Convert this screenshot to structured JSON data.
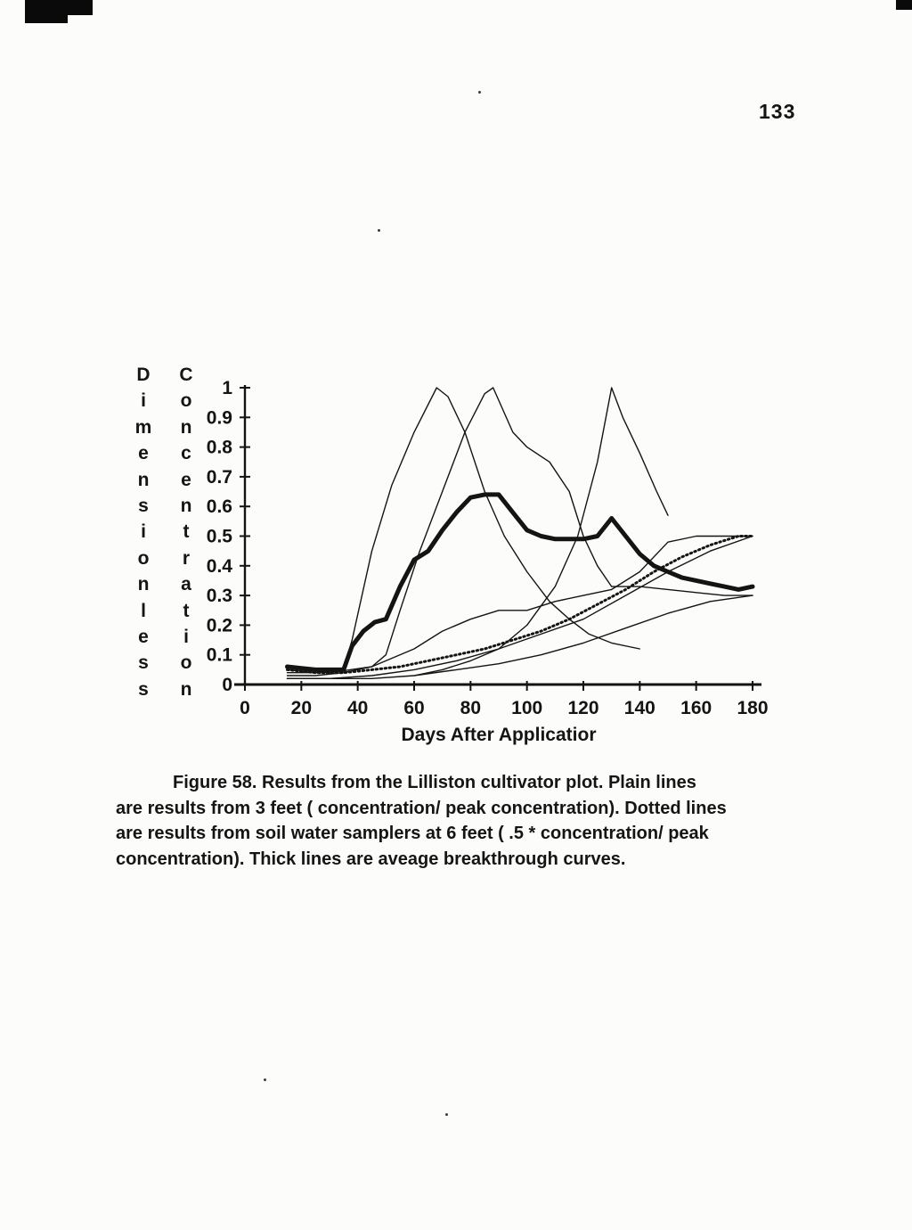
{
  "page": {
    "number": "133"
  },
  "caption": {
    "lines": [
      "Figure 58.  Results from the Lilliston cultivator plot.   Plain lines",
      "are results from 3 feet ( concentration/ peak concentration).  Dotted lines",
      "are results from soil water samplers at 6 feet ( .5 * concentration/ peak",
      "concentration).  Thick lines are aveage breakthrough curves."
    ]
  },
  "chart_data": {
    "type": "line",
    "title": "",
    "xlabel": "Days After Applicatior",
    "ylabel_words": [
      "Dimensionless",
      "Concentration"
    ],
    "xlim": [
      0,
      180
    ],
    "ylim": [
      0,
      1
    ],
    "xticks": [
      0,
      20,
      40,
      60,
      80,
      100,
      120,
      140,
      160,
      180
    ],
    "yticks": [
      0,
      0.1,
      0.2,
      0.3,
      0.4,
      0.5,
      0.6,
      0.7,
      0.8,
      0.9,
      1
    ],
    "ytick_labels": [
      "0",
      "0.1",
      "0.2",
      "0.3",
      "0.4",
      "0.5",
      "0.6",
      "0.7",
      "0.8",
      "0.9",
      "1"
    ],
    "grid": false,
    "legend": "none",
    "line_color": "#141414",
    "series": [
      {
        "name": "plain-peak-70",
        "style": "plain",
        "x": [
          15,
          25,
          35,
          38,
          45,
          52,
          60,
          68,
          72,
          78,
          85,
          92,
          100,
          108,
          115,
          122,
          130,
          140
        ],
        "y": [
          0.05,
          0.04,
          0.05,
          0.15,
          0.45,
          0.67,
          0.85,
          1.0,
          0.97,
          0.85,
          0.65,
          0.5,
          0.38,
          0.28,
          0.22,
          0.17,
          0.14,
          0.12
        ]
      },
      {
        "name": "plain-peak-88",
        "style": "plain",
        "x": [
          15,
          25,
          35,
          45,
          50,
          55,
          62,
          70,
          78,
          85,
          88,
          95,
          100,
          108,
          115,
          120,
          125,
          130,
          140,
          150,
          160,
          170,
          180
        ],
        "y": [
          0.03,
          0.03,
          0.04,
          0.06,
          0.1,
          0.25,
          0.45,
          0.65,
          0.85,
          0.98,
          1.0,
          0.85,
          0.8,
          0.75,
          0.65,
          0.5,
          0.4,
          0.33,
          0.33,
          0.32,
          0.31,
          0.3,
          0.3
        ]
      },
      {
        "name": "plain-peak-130",
        "style": "plain",
        "x": [
          60,
          70,
          80,
          90,
          100,
          110,
          118,
          125,
          130,
          134,
          140,
          146,
          150
        ],
        "y": [
          0.03,
          0.05,
          0.08,
          0.12,
          0.2,
          0.33,
          0.5,
          0.75,
          1.0,
          0.9,
          0.78,
          0.65,
          0.57
        ]
      },
      {
        "name": "plain-hump-rise",
        "style": "plain",
        "x": [
          15,
          30,
          45,
          60,
          70,
          80,
          90,
          100,
          110,
          120,
          130,
          140,
          150,
          160,
          170,
          180
        ],
        "y": [
          0.04,
          0.04,
          0.06,
          0.12,
          0.18,
          0.22,
          0.25,
          0.25,
          0.28,
          0.3,
          0.32,
          0.38,
          0.48,
          0.5,
          0.5,
          0.5
        ]
      },
      {
        "name": "plain-slow-rise-high",
        "style": "plain",
        "x": [
          15,
          30,
          45,
          60,
          75,
          90,
          105,
          120,
          135,
          150,
          165,
          180
        ],
        "y": [
          0.02,
          0.02,
          0.03,
          0.05,
          0.08,
          0.12,
          0.17,
          0.22,
          0.3,
          0.38,
          0.45,
          0.5
        ]
      },
      {
        "name": "plain-slow-rise-low",
        "style": "plain",
        "x": [
          15,
          30,
          45,
          60,
          75,
          90,
          105,
          120,
          135,
          150,
          165,
          180
        ],
        "y": [
          0.02,
          0.02,
          0.02,
          0.03,
          0.05,
          0.07,
          0.1,
          0.14,
          0.19,
          0.24,
          0.28,
          0.3
        ]
      },
      {
        "name": "dotted-6ft",
        "style": "dotted",
        "x": [
          15,
          25,
          35,
          45,
          55,
          65,
          75,
          85,
          95,
          105,
          115,
          125,
          135,
          145,
          155,
          165,
          175,
          180
        ],
        "y": [
          0.05,
          0.04,
          0.04,
          0.05,
          0.06,
          0.08,
          0.1,
          0.12,
          0.15,
          0.18,
          0.22,
          0.27,
          0.32,
          0.38,
          0.43,
          0.47,
          0.5,
          0.5
        ]
      },
      {
        "name": "average-breakthrough",
        "style": "thick",
        "x": [
          15,
          20,
          25,
          30,
          35,
          38,
          42,
          46,
          50,
          55,
          60,
          65,
          70,
          75,
          80,
          85,
          90,
          95,
          100,
          105,
          110,
          115,
          120,
          125,
          130,
          135,
          140,
          145,
          150,
          155,
          160,
          165,
          170,
          175,
          180
        ],
        "y": [
          0.06,
          0.055,
          0.05,
          0.05,
          0.05,
          0.13,
          0.18,
          0.21,
          0.22,
          0.33,
          0.42,
          0.45,
          0.52,
          0.58,
          0.63,
          0.64,
          0.64,
          0.58,
          0.52,
          0.5,
          0.49,
          0.49,
          0.49,
          0.5,
          0.56,
          0.5,
          0.44,
          0.4,
          0.38,
          0.36,
          0.35,
          0.34,
          0.33,
          0.32,
          0.33
        ]
      }
    ]
  }
}
